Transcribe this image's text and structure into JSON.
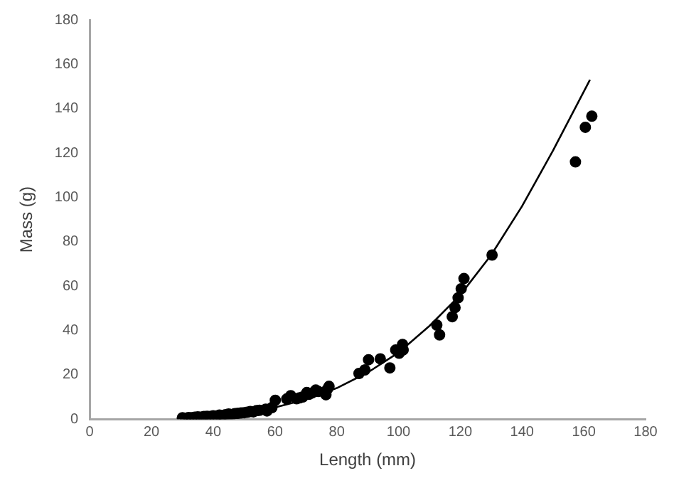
{
  "chart_data": {
    "type": "scatter",
    "xlabel": "Length (mm)",
    "ylabel": "Mass (g)",
    "xlim": [
      0,
      180
    ],
    "ylim": [
      0,
      180
    ],
    "xticks": [
      0,
      20,
      40,
      60,
      80,
      100,
      120,
      140,
      160,
      180
    ],
    "yticks": [
      0,
      20,
      40,
      60,
      80,
      100,
      120,
      140,
      160,
      180
    ],
    "grid": false,
    "legend": false,
    "series": [
      {
        "color": "#000000",
        "marker": "circle",
        "x": [
          30,
          31,
          32,
          33,
          34,
          35,
          36,
          37,
          38,
          39,
          40,
          41,
          42,
          43,
          44,
          45,
          46,
          47,
          48,
          49,
          50,
          51,
          52,
          53,
          54,
          55,
          57,
          57.4,
          59,
          60.1,
          63.8,
          65.1,
          67,
          68,
          69,
          70.3,
          71,
          72,
          73.2,
          74,
          76.5,
          77,
          77.5,
          87.2,
          89.1,
          90.3,
          94.1,
          97.2,
          99.1,
          100.2,
          101.3,
          101.5,
          112.4,
          113.3,
          117.4,
          118.3,
          119.3,
          120.3,
          121.2,
          130.3,
          157.3,
          160.5,
          162.6
        ],
        "values": [
          0.6,
          0.4,
          0.7,
          0.6,
          0.9,
          1,
          0.9,
          1.2,
          1.3,
          1.2,
          1.5,
          1.4,
          1.8,
          1.7,
          2,
          2.3,
          2.1,
          2.5,
          2.6,
          2.8,
          2.9,
          3.1,
          3.4,
          3.3,
          3.8,
          4,
          4.5,
          3.7,
          5.2,
          8.5,
          9.1,
          10.6,
          9.2,
          9.6,
          10,
          12,
          11.2,
          11.8,
          13.1,
          12.5,
          11,
          13.6,
          14.8,
          20.6,
          22.2,
          26.8,
          27.2,
          23.1,
          31.2,
          29.7,
          33.7,
          31.2,
          42.4,
          38,
          46.2,
          50.3,
          54.7,
          58.8,
          63.4,
          74,
          116,
          131.6,
          136.6
        ]
      },
      {
        "type": "line",
        "color": "#000000",
        "marker": "none",
        "line_style": "solid",
        "x": [
          30,
          40,
          50,
          60,
          70,
          80,
          90,
          100,
          110,
          120,
          130,
          140,
          150,
          162
        ],
        "values": [
          0.5,
          1.3,
          2.8,
          5.3,
          8.9,
          14,
          21,
          30,
          42,
          56,
          74,
          96,
          121,
          153
        ]
      }
    ]
  }
}
